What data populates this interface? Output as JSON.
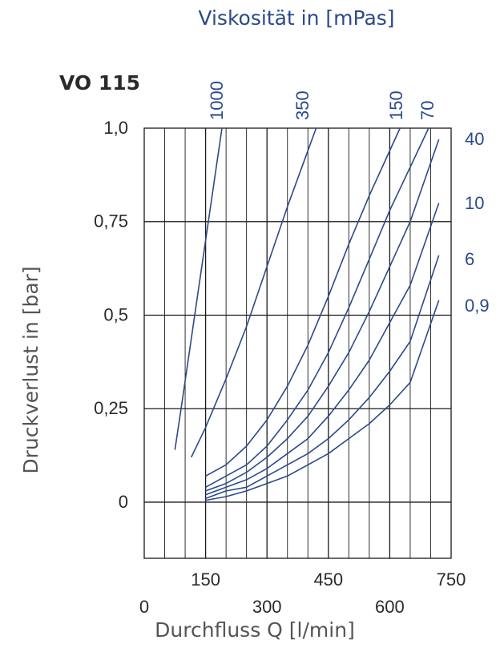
{
  "chart_data": {
    "type": "line",
    "title": "VO 115",
    "header": "Viskosität in [mPas]",
    "xlabel": "Durchfluss Q [l/min]",
    "ylabel": "Druckverlust in [bar]",
    "xlim": [
      0,
      750
    ],
    "ylim": [
      -0.15,
      1.0
    ],
    "grid": true,
    "x_ticks_upper": [
      "150",
      "450",
      "750"
    ],
    "x_ticks_lower": [
      "0",
      "300",
      "600"
    ],
    "y_ticks": [
      "1,0",
      "0,75",
      "0,5",
      "0,25",
      "0"
    ],
    "series_labels_top": [
      "1000",
      "350",
      "150",
      "70"
    ],
    "series_labels_right": [
      "40",
      "10",
      "6",
      "0,9"
    ],
    "colors": {
      "curve": "#2b4a8a",
      "grid": "#1a1a1a",
      "text": "#2a2a2a"
    },
    "series": [
      {
        "name": "1000",
        "x": [
          75,
          90,
          110,
          130,
          150,
          170,
          190
        ],
        "y": [
          0.14,
          0.25,
          0.4,
          0.55,
          0.7,
          0.85,
          1.0
        ]
      },
      {
        "name": "350",
        "x": [
          115,
          150,
          200,
          250,
          300,
          350,
          420
        ],
        "y": [
          0.12,
          0.2,
          0.33,
          0.47,
          0.63,
          0.79,
          1.0
        ]
      },
      {
        "name": "150",
        "x": [
          150,
          200,
          250,
          300,
          350,
          400,
          450,
          500,
          550,
          625
        ],
        "y": [
          0.07,
          0.1,
          0.15,
          0.22,
          0.31,
          0.42,
          0.55,
          0.69,
          0.82,
          1.0
        ]
      },
      {
        "name": "70",
        "x": [
          150,
          200,
          250,
          300,
          350,
          400,
          450,
          500,
          550,
          600,
          695
        ],
        "y": [
          0.04,
          0.07,
          0.1,
          0.15,
          0.22,
          0.3,
          0.4,
          0.52,
          0.65,
          0.78,
          1.0
        ]
      },
      {
        "name": "40",
        "x": [
          150,
          200,
          250,
          300,
          350,
          400,
          450,
          500,
          550,
          600,
          650,
          720
        ],
        "y": [
          0.03,
          0.05,
          0.08,
          0.12,
          0.17,
          0.23,
          0.31,
          0.4,
          0.51,
          0.63,
          0.75,
          0.97
        ]
      },
      {
        "name": "10",
        "x": [
          150,
          200,
          250,
          300,
          350,
          400,
          450,
          500,
          550,
          600,
          650,
          720
        ],
        "y": [
          0.02,
          0.04,
          0.06,
          0.09,
          0.13,
          0.17,
          0.23,
          0.3,
          0.38,
          0.48,
          0.58,
          0.8
        ]
      },
      {
        "name": "6",
        "x": [
          150,
          200,
          250,
          300,
          350,
          400,
          450,
          500,
          550,
          600,
          650,
          720
        ],
        "y": [
          0.01,
          0.03,
          0.04,
          0.07,
          0.1,
          0.13,
          0.17,
          0.22,
          0.28,
          0.35,
          0.43,
          0.66
        ]
      },
      {
        "name": "0,9",
        "x": [
          150,
          200,
          250,
          300,
          350,
          400,
          450,
          500,
          550,
          600,
          650,
          720
        ],
        "y": [
          0.005,
          0.015,
          0.03,
          0.05,
          0.07,
          0.1,
          0.13,
          0.17,
          0.21,
          0.26,
          0.32,
          0.54
        ]
      }
    ]
  }
}
